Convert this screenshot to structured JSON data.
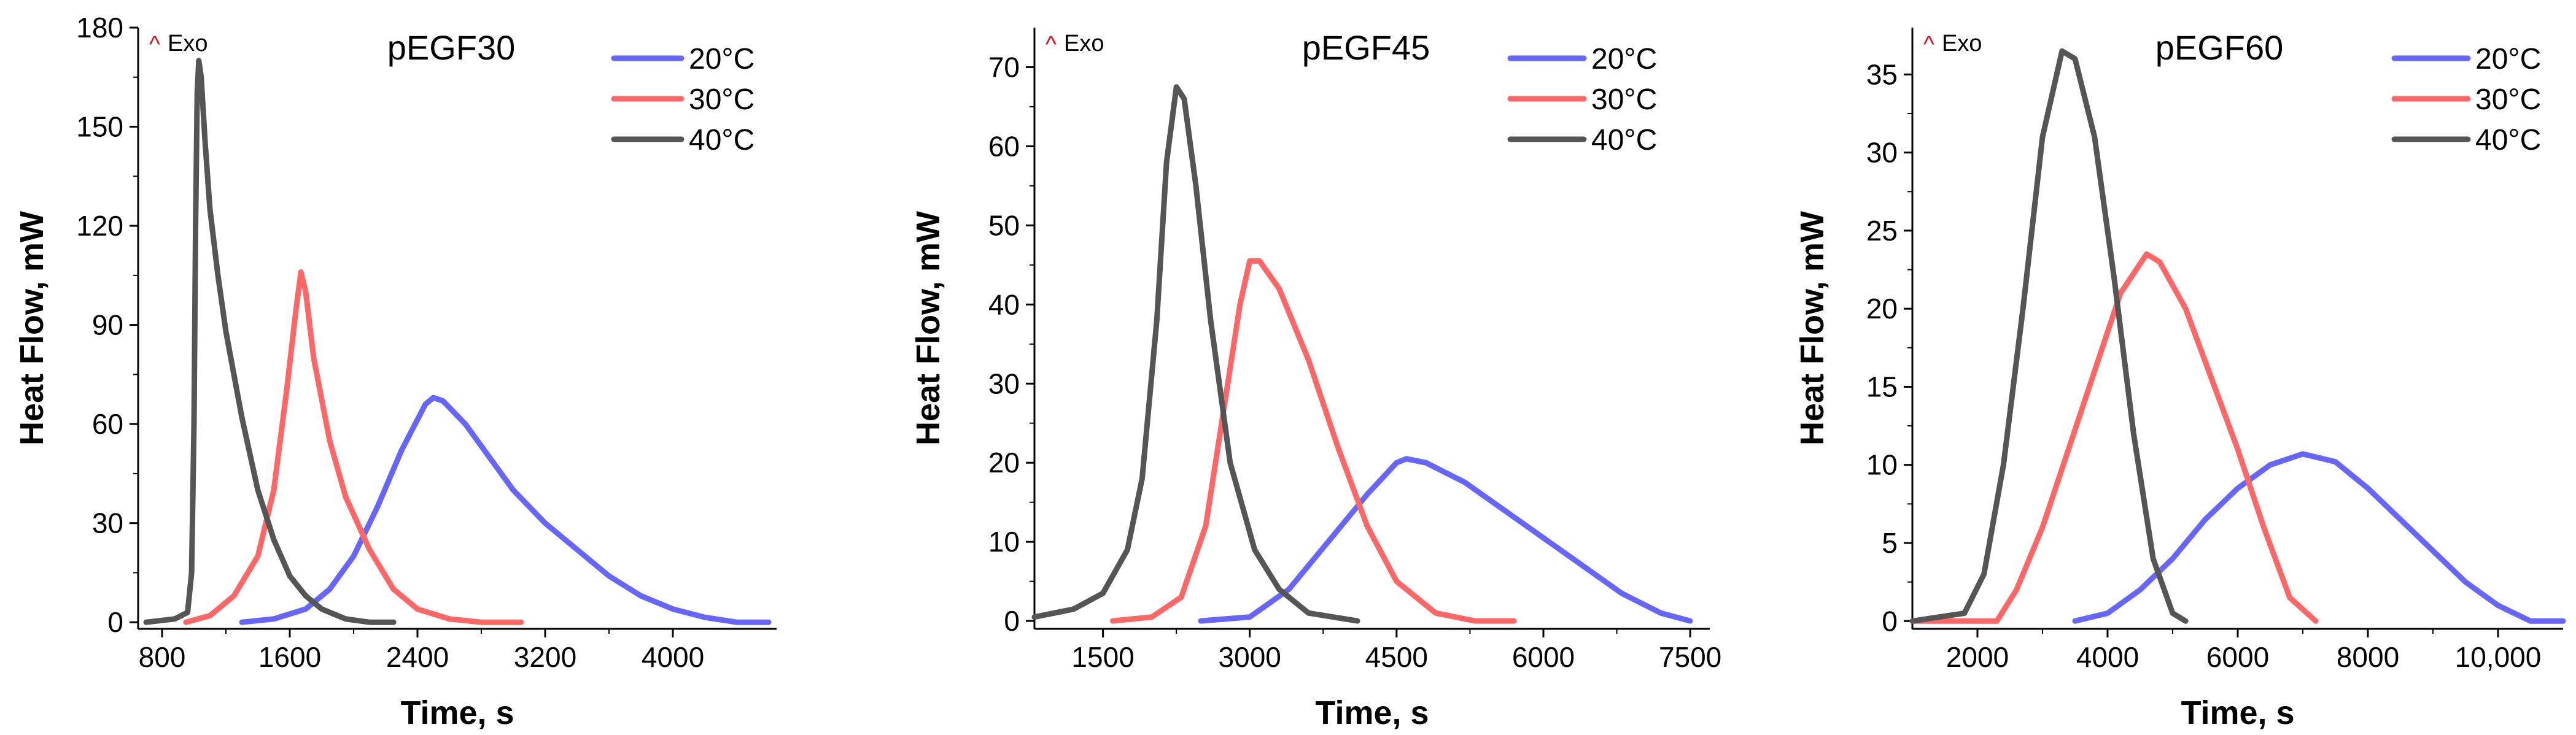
{
  "chart_data": [
    {
      "type": "line",
      "title": "pEGF30",
      "xlabel": "Time, s",
      "ylabel": "Heat Flow, mW",
      "annotation": {
        "symbol": "^",
        "text": "Exo"
      },
      "xlim": [
        650,
        4650
      ],
      "ylim": [
        -2,
        180
      ],
      "xticks": [
        800,
        1600,
        2400,
        3200,
        4000
      ],
      "xtick_labels": [
        "800",
        "1600",
        "2400",
        "3200",
        "4000"
      ],
      "yticks": [
        0,
        30,
        60,
        90,
        120,
        150,
        180
      ],
      "ytick_labels": [
        "0",
        "30",
        "60",
        "90",
        "120",
        "150",
        "180"
      ],
      "legend_position": "top-right",
      "series": [
        {
          "name": "20°C",
          "color": "#6666ff",
          "points": [
            [
              1300,
              0
            ],
            [
              1500,
              1
            ],
            [
              1700,
              4
            ],
            [
              1850,
              10
            ],
            [
              2000,
              20
            ],
            [
              2150,
              35
            ],
            [
              2300,
              52
            ],
            [
              2450,
              66
            ],
            [
              2500,
              68
            ],
            [
              2560,
              67
            ],
            [
              2700,
              60
            ],
            [
              2850,
              50
            ],
            [
              3000,
              40
            ],
            [
              3200,
              30
            ],
            [
              3400,
              22
            ],
            [
              3600,
              14
            ],
            [
              3800,
              8
            ],
            [
              4000,
              4
            ],
            [
              4200,
              1.5
            ],
            [
              4400,
              0
            ],
            [
              4600,
              0
            ]
          ]
        },
        {
          "name": "30°C",
          "color": "#ff6666",
          "points": [
            [
              950,
              0
            ],
            [
              1100,
              2
            ],
            [
              1250,
              8
            ],
            [
              1400,
              20
            ],
            [
              1500,
              40
            ],
            [
              1580,
              70
            ],
            [
              1640,
              95
            ],
            [
              1670,
              106
            ],
            [
              1700,
              100
            ],
            [
              1750,
              80
            ],
            [
              1850,
              55
            ],
            [
              1950,
              38
            ],
            [
              2100,
              22
            ],
            [
              2250,
              10
            ],
            [
              2400,
              4
            ],
            [
              2600,
              1
            ],
            [
              2800,
              0
            ],
            [
              3050,
              0
            ]
          ]
        },
        {
          "name": "40°C",
          "color": "#555555",
          "points": [
            [
              700,
              0
            ],
            [
              880,
              1
            ],
            [
              960,
              3
            ],
            [
              985,
              15
            ],
            [
              1000,
              60
            ],
            [
              1010,
              120
            ],
            [
              1020,
              160
            ],
            [
              1030,
              170
            ],
            [
              1045,
              165
            ],
            [
              1070,
              145
            ],
            [
              1100,
              125
            ],
            [
              1150,
              105
            ],
            [
              1200,
              88
            ],
            [
              1300,
              62
            ],
            [
              1400,
              40
            ],
            [
              1500,
              25
            ],
            [
              1600,
              14
            ],
            [
              1700,
              8
            ],
            [
              1800,
              4
            ],
            [
              1950,
              1
            ],
            [
              2100,
              0
            ],
            [
              2250,
              0
            ]
          ]
        }
      ]
    },
    {
      "type": "line",
      "title": "pEGF45",
      "xlabel": "Time, s",
      "ylabel": "Heat Flow, mW",
      "annotation": {
        "symbol": "^",
        "text": "Exo"
      },
      "xlim": [
        800,
        7700
      ],
      "ylim": [
        -1,
        75
      ],
      "xticks": [
        1500,
        3000,
        4500,
        6000,
        7500
      ],
      "xtick_labels": [
        "1500",
        "3000",
        "4500",
        "6000",
        "7500"
      ],
      "yticks": [
        0,
        10,
        20,
        30,
        40,
        50,
        60,
        70
      ],
      "ytick_labels": [
        "0",
        "10",
        "20",
        "30",
        "40",
        "50",
        "60",
        "70"
      ],
      "legend_position": "top-right",
      "series": [
        {
          "name": "20°C",
          "color": "#6666ff",
          "points": [
            [
              2500,
              0
            ],
            [
              3000,
              0.5
            ],
            [
              3400,
              4
            ],
            [
              3800,
              10
            ],
            [
              4200,
              16
            ],
            [
              4500,
              20
            ],
            [
              4600,
              20.5
            ],
            [
              4800,
              20
            ],
            [
              5200,
              17.5
            ],
            [
              5600,
              14
            ],
            [
              6000,
              10.5
            ],
            [
              6400,
              7
            ],
            [
              6800,
              3.5
            ],
            [
              7200,
              1
            ],
            [
              7500,
              0
            ]
          ]
        },
        {
          "name": "30°C",
          "color": "#ff6666",
          "points": [
            [
              1600,
              0
            ],
            [
              2000,
              0.5
            ],
            [
              2300,
              3
            ],
            [
              2550,
              12
            ],
            [
              2750,
              28
            ],
            [
              2900,
              40
            ],
            [
              3000,
              45.5
            ],
            [
              3100,
              45.5
            ],
            [
              3300,
              42
            ],
            [
              3600,
              33
            ],
            [
              3900,
              22
            ],
            [
              4200,
              12
            ],
            [
              4500,
              5
            ],
            [
              4900,
              1
            ],
            [
              5300,
              0
            ],
            [
              5700,
              0
            ]
          ]
        },
        {
          "name": "40°C",
          "color": "#555555",
          "points": [
            [
              800,
              0.5
            ],
            [
              1200,
              1.5
            ],
            [
              1500,
              3.5
            ],
            [
              1750,
              9
            ],
            [
              1900,
              18
            ],
            [
              2050,
              38
            ],
            [
              2150,
              58
            ],
            [
              2250,
              67.5
            ],
            [
              2330,
              66
            ],
            [
              2450,
              55
            ],
            [
              2600,
              38
            ],
            [
              2800,
              20
            ],
            [
              3050,
              9
            ],
            [
              3300,
              4
            ],
            [
              3600,
              1
            ],
            [
              4100,
              0
            ]
          ]
        }
      ]
    },
    {
      "type": "line",
      "title": "pEGF60",
      "xlabel": "Time, s",
      "ylabel": "Heat Flow, mW",
      "annotation": {
        "symbol": "^",
        "text": "Exo"
      },
      "xlim": [
        1000,
        11000
      ],
      "ylim": [
        -0.5,
        38
      ],
      "xticks": [
        2000,
        4000,
        6000,
        8000,
        10000
      ],
      "xtick_labels": [
        "2000",
        "4000",
        "6000",
        "8000",
        "10,000"
      ],
      "yticks": [
        0,
        5,
        10,
        15,
        20,
        25,
        30,
        35
      ],
      "ytick_labels": [
        "0",
        "5",
        "10",
        "15",
        "20",
        "25",
        "30",
        "35"
      ],
      "legend_position": "top-right",
      "series": [
        {
          "name": "20°C",
          "color": "#6666ff",
          "points": [
            [
              3500,
              0
            ],
            [
              4000,
              0.5
            ],
            [
              4500,
              2
            ],
            [
              5000,
              4
            ],
            [
              5500,
              6.5
            ],
            [
              6000,
              8.5
            ],
            [
              6500,
              10
            ],
            [
              7000,
              10.7
            ],
            [
              7500,
              10.2
            ],
            [
              8000,
              8.5
            ],
            [
              8500,
              6.5
            ],
            [
              9000,
              4.5
            ],
            [
              9500,
              2.5
            ],
            [
              10000,
              1
            ],
            [
              10500,
              0
            ],
            [
              11000,
              0
            ]
          ]
        },
        {
          "name": "30°C",
          "color": "#ff6666",
          "points": [
            [
              1000,
              0
            ],
            [
              2300,
              0
            ],
            [
              2600,
              2
            ],
            [
              3000,
              6
            ],
            [
              3400,
              11
            ],
            [
              3800,
              16
            ],
            [
              4200,
              21
            ],
            [
              4600,
              23.5
            ],
            [
              4800,
              23
            ],
            [
              5200,
              20
            ],
            [
              5600,
              15.5
            ],
            [
              6000,
              11
            ],
            [
              6400,
              6
            ],
            [
              6800,
              1.5
            ],
            [
              7200,
              0
            ]
          ]
        },
        {
          "name": "40°C",
          "color": "#555555",
          "points": [
            [
              1000,
              0
            ],
            [
              1800,
              0.5
            ],
            [
              2100,
              3
            ],
            [
              2400,
              10
            ],
            [
              2700,
              20
            ],
            [
              3000,
              31
            ],
            [
              3300,
              36.5
            ],
            [
              3500,
              36
            ],
            [
              3800,
              31
            ],
            [
              4100,
              22
            ],
            [
              4400,
              12
            ],
            [
              4700,
              4
            ],
            [
              5000,
              0.5
            ],
            [
              5200,
              0
            ]
          ]
        }
      ]
    }
  ]
}
